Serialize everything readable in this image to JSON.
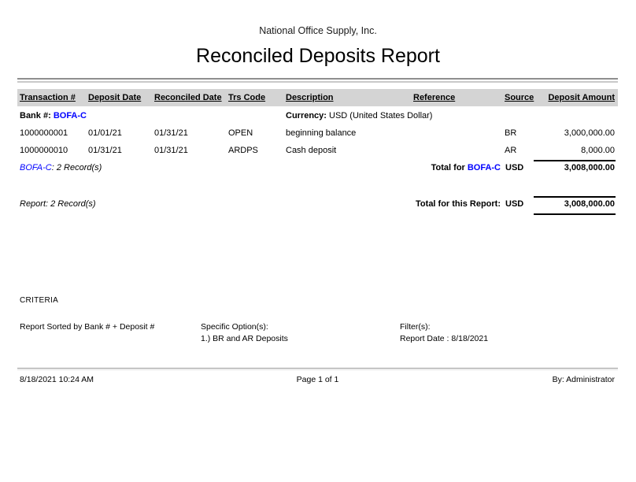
{
  "header": {
    "company": "National Office Supply, Inc.",
    "title": "Reconciled Deposits Report"
  },
  "table": {
    "columns": [
      "Transaction #",
      "Deposit Date",
      "Reconciled Date",
      "Trs Code",
      "Description",
      "Reference",
      "Source",
      "Deposit Amount"
    ],
    "bank": {
      "label": "Bank #:",
      "value": "BOFA-C"
    },
    "currency": {
      "label": "Currency:",
      "value": "USD (United States Dollar)"
    },
    "rows": [
      {
        "transaction": "1000000001",
        "deposit_date": "01/01/21",
        "reconciled_date": "01/31/21",
        "trs_code": "OPEN",
        "description": "beginning balance",
        "reference": "",
        "source": "BR",
        "amount": "3,000,000.00"
      },
      {
        "transaction": "1000000010",
        "deposit_date": "01/31/21",
        "reconciled_date": "01/31/21",
        "trs_code": "ARDPS",
        "description": "Cash deposit",
        "reference": "",
        "source": "AR",
        "amount": "8,000.00"
      }
    ],
    "bank_total": {
      "group": "BOFA-C",
      "records": ": 2 Record(s)",
      "label": "Total for",
      "bank": "BOFA-C",
      "currency": "USD",
      "amount": "3,008,000.00"
    },
    "report_total": {
      "records": "Report: 2 Record(s)",
      "label": "Total for this Report:",
      "currency": "USD",
      "amount": "3,008,000.00"
    }
  },
  "criteria": {
    "heading": "CRITERIA",
    "sorted_by": "Report Sorted by Bank # + Deposit #",
    "specific_options_label": "Specific Option(s):",
    "specific_options_value": "1.) BR and AR Deposits",
    "filters_label": "Filter(s):",
    "filters_value": "Report Date : 8/18/2021"
  },
  "footer": {
    "timestamp": "8/18/2021 10:24 AM",
    "page": "Page 1 of 1",
    "by": "By: Administrator"
  },
  "colors": {
    "link": "#0000ff",
    "header_bar": "#d4d4d4"
  }
}
